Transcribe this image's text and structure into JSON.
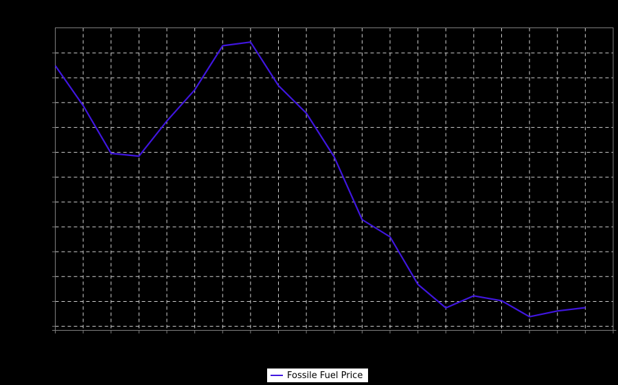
{
  "chart_data": {
    "type": "line",
    "title": "",
    "xlabel": "",
    "ylabel": "",
    "axes_tick_labels_visible": false,
    "x": [
      1,
      2,
      3,
      4,
      5,
      6,
      7,
      8,
      9,
      10,
      11,
      12,
      13,
      14,
      15,
      16,
      17,
      18,
      19,
      20
    ],
    "x_slots": 21,
    "y_range": [
      0,
      100
    ],
    "series": [
      {
        "name": "Fossile Fuel Price",
        "color": "#4016e0",
        "values": [
          87.5,
          74.3,
          58.5,
          57.6,
          69.2,
          79.5,
          94.1,
          95.3,
          80.9,
          71.8,
          57.3,
          36.6,
          30.9,
          15.2,
          7.4,
          11.4,
          9.8,
          4.5,
          6.4,
          7.5
        ]
      }
    ],
    "grid": {
      "style": "dashed",
      "x_columns": 20,
      "y_gridlines": 12
    },
    "legend_position": "bottom-center"
  },
  "legend": {
    "label": "Fossile Fuel Price",
    "swatch_color": "#4016e0"
  },
  "colors": {
    "background": "#000000",
    "plot_border": "#808080",
    "gridline": "#d4d4d4",
    "tick": "#808080",
    "line": "#4016e0",
    "legend_bg": "#ffffff",
    "legend_border": "#000000",
    "legend_text": "#000000"
  }
}
